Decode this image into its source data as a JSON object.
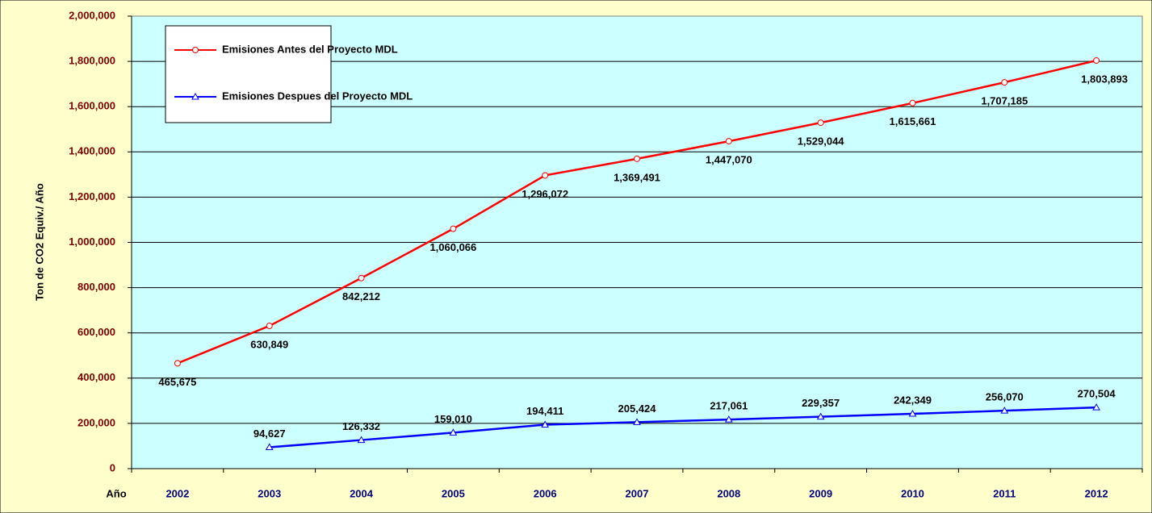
{
  "chart_data": {
    "type": "line",
    "y_axis_label": "Ton de CO2 Equiv./ Año",
    "x_axis_label": "Año",
    "categories": [
      "2002",
      "2003",
      "2004",
      "2005",
      "2006",
      "2007",
      "2008",
      "2009",
      "2010",
      "2011",
      "2012"
    ],
    "series": [
      {
        "name": "Emisiones Antes del Proyecto MDL",
        "color": "#ff0000",
        "marker": "circle",
        "values": [
          465675,
          630849,
          842212,
          1060066,
          1296072,
          1369491,
          1447070,
          1529044,
          1615661,
          1707185,
          1803893
        ],
        "value_labels": [
          "465,675",
          "630,849",
          "842,212",
          "1,060,066",
          "1,296,072",
          "1,369,491",
          "1,447,070",
          "1,529,044",
          "1,615,661",
          "1,707,185",
          "1,803,893"
        ]
      },
      {
        "name": "Emisiones Despues del Proyecto MDL",
        "color": "#0000ff",
        "marker": "triangle",
        "values": [
          null,
          94627,
          126332,
          159010,
          194411,
          205424,
          217061,
          229357,
          242349,
          256070,
          270504
        ],
        "value_labels": [
          null,
          "94,627",
          "126,332",
          "159,010",
          "194,411",
          "205,424",
          "217,061",
          "229,357",
          "242,349",
          "256,070",
          "270,504"
        ]
      }
    ],
    "ylim": [
      0,
      2000000
    ],
    "yticks": [
      0,
      {
        "value": 200000,
        "label": "200,000"
      },
      {
        "value": 400000,
        "label": "400,000"
      },
      {
        "value": 600000,
        "label": "600,000"
      },
      {
        "value": 800000,
        "label": "800,000"
      },
      {
        "value": 1000000,
        "label": "1,000,000"
      },
      {
        "value": 1200000,
        "label": "1,200,000"
      },
      {
        "value": 1400000,
        "label": "1,400,000"
      },
      {
        "value": 1600000,
        "label": "1,600,000"
      },
      {
        "value": 1800000,
        "label": "1,800,000"
      },
      {
        "value": 2000000,
        "label": "2,000,000"
      }
    ],
    "grid": true,
    "legend": "upper left"
  }
}
